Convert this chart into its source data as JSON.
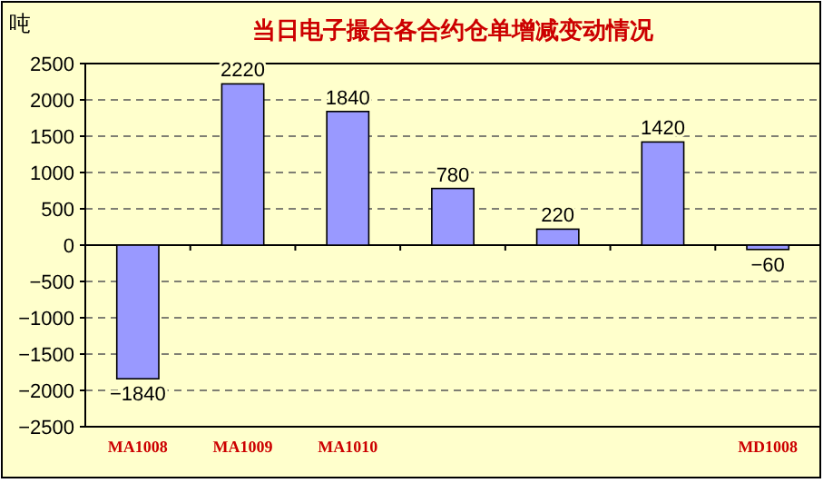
{
  "chart_data": {
    "type": "bar",
    "title": "当日电子撮合各合约仓单增减变动情况",
    "ylabel": "吨",
    "categories": [
      "MA1008",
      "MA1009",
      "MA1010",
      null,
      null,
      null,
      "MD1008"
    ],
    "values": [
      -1840,
      2220,
      1840,
      780,
      220,
      1420,
      -60
    ],
    "color": "#9999ff",
    "ylim": [
      -2500,
      2500
    ],
    "yticks": [
      -2500,
      -2000,
      -1500,
      -1000,
      -500,
      0,
      500,
      1000,
      1500,
      2000,
      2500
    ],
    "grid": "y",
    "data_labels": true
  }
}
